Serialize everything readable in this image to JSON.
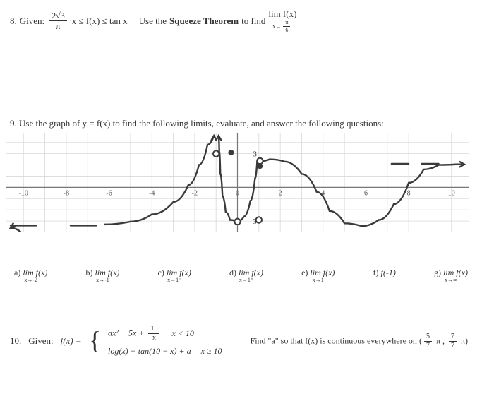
{
  "q8": {
    "number": "8.",
    "given_label": "Given:",
    "frac_num": "2√3",
    "frac_den": "π",
    "mid": "x  ≤  f(x)  ≤  tan x",
    "instr_a": "Use the",
    "instr_b": "Squeeze Theorem",
    "instr_c": "to find",
    "lim_expr": "lim f(x)",
    "lim_sub_frac_num": "π",
    "lim_sub_frac_den": "6",
    "lim_sub_prefix": "x→"
  },
  "q9": {
    "number": "9.",
    "text": "Use the graph of y = f(x)  to find the following limits, evaluate, and answer the following questions:",
    "axis": {
      "xticks": [
        -10,
        -8,
        -6,
        -4,
        -2,
        0,
        2,
        4,
        6,
        8,
        10
      ],
      "ylabels_pos": {
        "3": 3,
        "-3": -3
      }
    },
    "graph": {
      "xlim": [
        -10.8,
        10.8
      ],
      "ylim": [
        -4,
        4.8
      ],
      "grid_color": "#d8d8d8",
      "axis_color": "#777777",
      "curve_color": "#3a3a3a",
      "curve_width": 2.4,
      "dash_color": "#3a3a3a",
      "hole_fill": "#ffffff",
      "hole_stroke": "#3a3a3a",
      "dot_fill": "#3a3a3a",
      "segments": [
        {
          "type": "dashed",
          "pts": [
            [
              -10.6,
              -3.4
            ],
            [
              -9.4,
              -3.4
            ],
            [
              -7.8,
              -3.4
            ],
            [
              -6.6,
              -3.4
            ]
          ]
        },
        {
          "type": "solid",
          "pts": [
            [
              -10.6,
              -3.6
            ],
            [
              -10,
              -4.2
            ]
          ]
        },
        {
          "type": "solid",
          "pts": [
            [
              -6.2,
              -3.3
            ],
            [
              -5,
              -3.05
            ],
            [
              -4,
              -2.4
            ],
            [
              -3,
              -1.3
            ],
            [
              -2.3,
              0.2
            ],
            [
              -1.8,
              2.0
            ],
            [
              -1.4,
              3.8
            ],
            [
              -1.1,
              4.6
            ]
          ]
        },
        {
          "type": "solid",
          "pts": [
            [
              -0.88,
              4.6
            ],
            [
              -0.85,
              3.2
            ],
            [
              -0.8,
              1.2
            ],
            [
              -0.7,
              -0.8
            ],
            [
              -0.55,
              -2.2
            ],
            [
              -0.35,
              -2.9
            ],
            [
              0,
              -3.05
            ],
            [
              0.3,
              -2.6
            ],
            [
              0.6,
              -1.2
            ],
            [
              0.82,
              0.8
            ],
            [
              0.92,
              2.3
            ]
          ]
        },
        {
          "type": "solid",
          "pts": [
            [
              1.15,
              2.35
            ],
            [
              1.5,
              2.5
            ],
            [
              2.2,
              2.3
            ],
            [
              3,
              1.2
            ],
            [
              3.7,
              -0.4
            ],
            [
              4.3,
              -2.1
            ],
            [
              5,
              -3.2
            ],
            [
              5.8,
              -3.45
            ],
            [
              6.6,
              -2.9
            ],
            [
              7.3,
              -1.5
            ],
            [
              8,
              0.4
            ],
            [
              8.7,
              1.6
            ],
            [
              9.4,
              2.0
            ],
            [
              10.2,
              2.05
            ],
            [
              10.6,
              2.05
            ]
          ]
        },
        {
          "type": "dashed",
          "pts": [
            [
              7.2,
              2.1
            ],
            [
              8.0,
              2.1
            ]
          ],
          "extra": true
        },
        {
          "type": "dashed",
          "pts": [
            [
              8.6,
              2.1
            ],
            [
              9.4,
              2.1
            ]
          ],
          "extra": true
        }
      ],
      "arrows": [
        {
          "at": [
            -10.6,
            -3.6
          ],
          "dir": "left-down"
        },
        {
          "at": [
            -1.1,
            4.6
          ],
          "dir": "up"
        },
        {
          "at": [
            -0.88,
            4.6
          ],
          "dir": "up"
        },
        {
          "at": [
            10.6,
            2.05
          ],
          "dir": "right"
        }
      ],
      "holes": [
        [
          -1.0,
          3.0
        ],
        [
          1.05,
          2.35
        ],
        [
          1.0,
          -2.9
        ],
        [
          0.0,
          -3.05
        ]
      ],
      "dots": [
        [
          -0.3,
          3.1
        ],
        [
          1.05,
          1.9
        ]
      ],
      "y_label_3": "3",
      "y_label_neg3": "-3"
    },
    "parts": [
      {
        "k": "a)",
        "f": "lim f(x)",
        "s": "x→-2"
      },
      {
        "k": "b)",
        "f": "lim f(x)",
        "s": "x→-1"
      },
      {
        "k": "c)",
        "f": "lim f(x)",
        "s": "x→1⁻"
      },
      {
        "k": "d)",
        "f": "lim f(x)",
        "s": "x→1⁺"
      },
      {
        "k": "e)",
        "f": "lim f(x)",
        "s": "x→1"
      },
      {
        "k": "f)",
        "f": "f(-1)",
        "s": ""
      },
      {
        "k": "g)",
        "f": "lim f(x)",
        "s": "x→∞"
      }
    ]
  },
  "q10": {
    "number": "10.",
    "given": "Given:",
    "fx": "f(x) =",
    "piece1_expr": "ax² − 5x +",
    "piece1_frac_num": "15",
    "piece1_frac_den": "x",
    "piece1_cond": "x < 10",
    "piece2_expr": "log(x) − tan(10 − x) + a",
    "piece2_cond": "x ≥ 10",
    "right_a": "Find \"a\" so that f(x) is continuous everywhere on",
    "right_b_open": "(",
    "right_frac1_num": "5",
    "right_frac1_den": "7",
    "right_pi1": "π ,",
    "right_frac2_num": "7",
    "right_frac2_den": "7",
    "right_pi2": "π)"
  }
}
